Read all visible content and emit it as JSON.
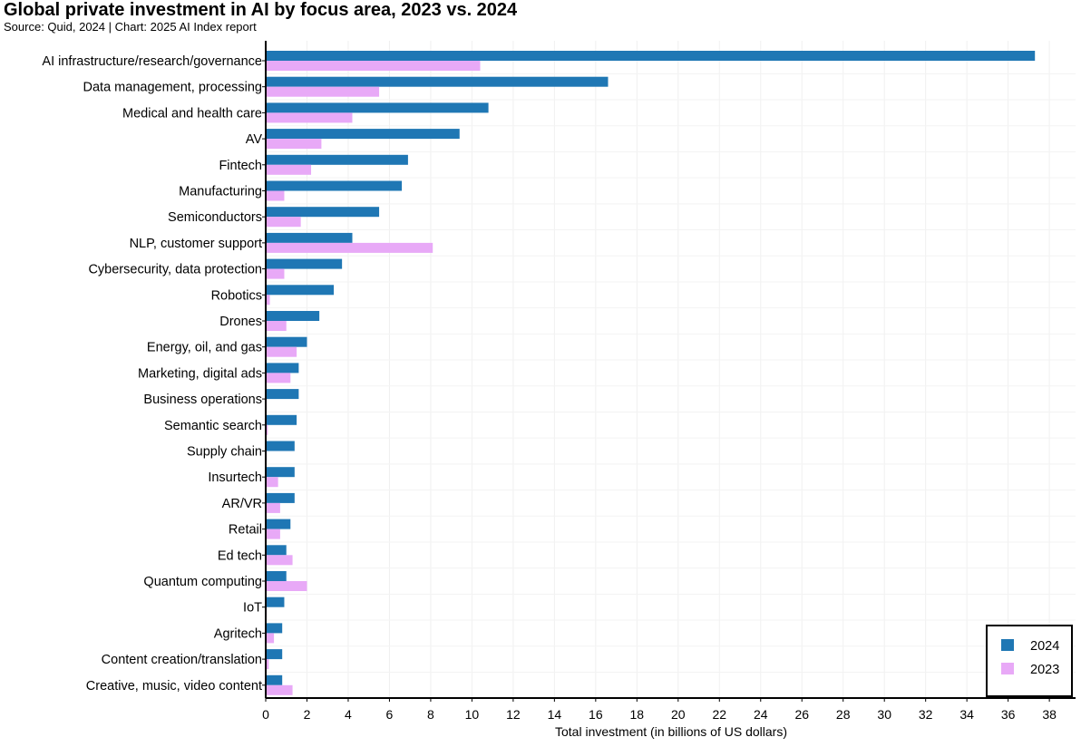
{
  "chart_data": {
    "type": "bar",
    "orientation": "horizontal",
    "title": "Global private investment in AI by focus area, 2023 vs. 2024",
    "subtitle": "Source: Quid, 2024 | Chart: 2025 AI Index report",
    "xlabel": "Total investment (in billions of US dollars)",
    "ylabel": "",
    "xlim": [
      0,
      39
    ],
    "xticks": [
      0,
      2,
      4,
      6,
      8,
      10,
      12,
      14,
      16,
      18,
      20,
      22,
      24,
      26,
      28,
      30,
      32,
      34,
      36,
      38
    ],
    "grid": true,
    "legend_position": "bottom-right",
    "categories": [
      "AI infrastructure/research/governance",
      "Data management, processing",
      "Medical and health care",
      "AV",
      "Fintech",
      "Manufacturing",
      "Semiconductors",
      "NLP, customer support",
      "Cybersecurity, data protection",
      "Robotics",
      "Drones",
      "Energy, oil, and gas",
      "Marketing, digital ads",
      "Business operations",
      "Semantic search",
      "Supply chain",
      "Insurtech",
      "AR/VR",
      "Retail",
      "Ed tech",
      "Quantum computing",
      "IoT",
      "Agritech",
      "Content creation/translation",
      "Creative, music, video content"
    ],
    "series": [
      {
        "name": "2024",
        "color": "#1f77b4",
        "values": [
          37.3,
          16.6,
          10.8,
          9.4,
          6.9,
          6.6,
          5.5,
          4.2,
          3.7,
          3.3,
          2.6,
          2.0,
          1.6,
          1.6,
          1.5,
          1.4,
          1.4,
          1.4,
          1.2,
          1.0,
          1.0,
          0.9,
          0.8,
          0.8,
          0.8
        ]
      },
      {
        "name": "2023",
        "color": "#e8a9f7",
        "values": [
          10.4,
          5.5,
          4.2,
          2.7,
          2.2,
          0.9,
          1.7,
          8.1,
          0.9,
          0.2,
          1.0,
          1.5,
          1.2,
          0.05,
          0.1,
          0.05,
          0.6,
          0.7,
          0.7,
          1.3,
          2.0,
          0.05,
          0.4,
          0.15,
          1.3
        ]
      }
    ]
  }
}
